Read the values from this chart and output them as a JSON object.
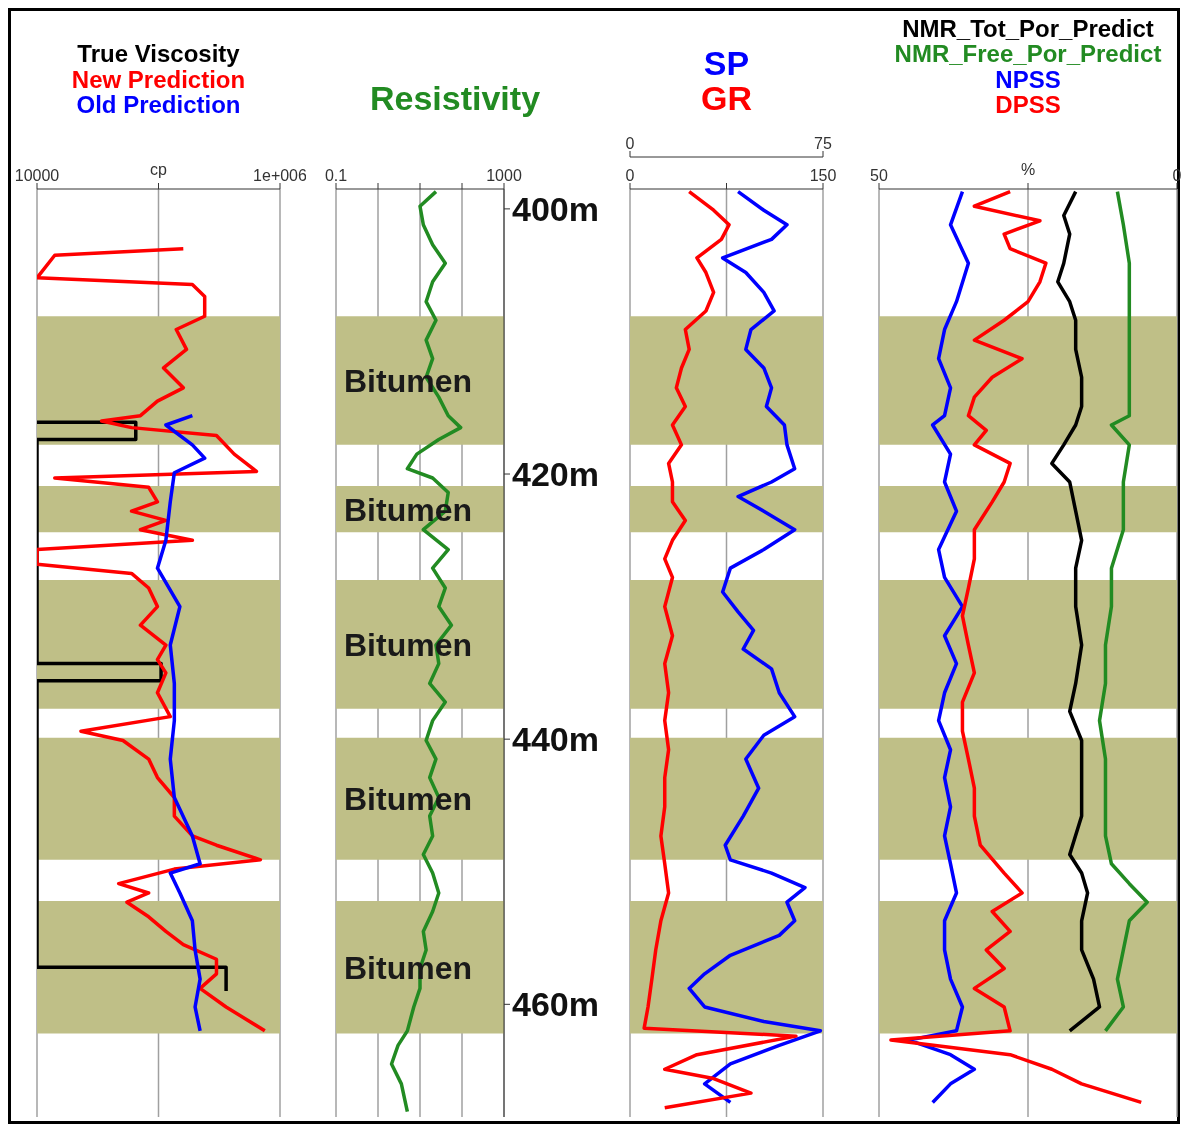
{
  "chart_data": [
    {
      "type": "line",
      "log": "x",
      "grid": "x",
      "tick_labels": "x",
      "xlabel": "cp",
      "xlim": [
        10000,
        1000000
      ],
      "xticks": [
        10000,
        {
          "value": 100000,
          "label": null
        },
        {
          "value": 1000000,
          "label": "1e+006"
        }
      ],
      "ylim": [
        468.5,
        398.5
      ],
      "bands": [
        {
          "axis": "y",
          "from": 408.1,
          "to": 417.8,
          "color": "#bfbf87"
        },
        {
          "axis": "y",
          "from": 420.9,
          "to": 424.4,
          "color": "#bfbf87"
        },
        {
          "axis": "y",
          "from": 428.0,
          "to": 437.7,
          "color": "#bfbf87"
        },
        {
          "axis": "y",
          "from": 439.9,
          "to": 449.1,
          "color": "#bfbf87"
        },
        {
          "axis": "y",
          "from": 452.2,
          "to": 462.2,
          "color": "#bfbf87"
        }
      ],
      "series": [
        {
          "name": "True Viscosity",
          "color": "#000000",
          "x": [
            10000,
            65000,
            65000,
            10000,
            10000,
            105000,
            105000,
            10000,
            10000,
            360000,
            360000
          ],
          "values": [
            416.1,
            416.1,
            417.4,
            417.4,
            434.3,
            434.3,
            435.6,
            435.6,
            457.2,
            457.2,
            459.0
          ]
        },
        {
          "name": "New Prediction",
          "color": "#ff0000",
          "x": [
            160000,
            14000,
            10000,
            190000,
            240000,
            240000,
            140000,
            170000,
            110000,
            160000,
            98000,
            71000,
            34000,
            60000,
            300000,
            420000,
            640000,
            14000,
            83000,
            98000,
            60000,
            115000,
            71000,
            190000,
            10000,
            10000,
            60000,
            83000,
            98000,
            71000,
            115000,
            98000,
            115000,
            98000,
            125000,
            23000,
            51000,
            83000,
            98000,
            135000,
            135000,
            190000,
            300000,
            690000,
            135000,
            47000,
            83000,
            55000,
            83000,
            115000,
            160000,
            300000,
            300000,
            220000,
            360000,
            750000
          ],
          "values": [
            403.0,
            403.5,
            405.2,
            405.7,
            406.6,
            408.1,
            409.1,
            410.6,
            412.0,
            413.5,
            414.5,
            415.6,
            416.0,
            416.5,
            417.1,
            418.5,
            419.8,
            420.3,
            421.0,
            422.1,
            422.8,
            423.5,
            424.2,
            425.0,
            425.7,
            426.8,
            427.5,
            428.6,
            430.0,
            431.4,
            432.9,
            434.0,
            435.0,
            436.5,
            438.3,
            439.4,
            440.1,
            441.5,
            442.9,
            444.4,
            445.8,
            447.3,
            448.0,
            449.1,
            449.8,
            450.9,
            451.6,
            452.3,
            453.4,
            454.5,
            455.5,
            456.6,
            457.7,
            458.8,
            460.2,
            462.0
          ]
        },
        {
          "name": "Old Prediction",
          "color": "#0000ff",
          "x": [
            190000,
            115000,
            190000,
            240000,
            135000,
            125000,
            115000,
            98000,
            150000,
            125000,
            135000,
            135000,
            125000,
            135000,
            190000,
            220000,
            125000,
            150000,
            190000,
            200000,
            220000,
            200000,
            220000
          ],
          "values": [
            415.6,
            416.3,
            417.8,
            418.8,
            419.9,
            422.1,
            425.0,
            427.1,
            430.0,
            432.9,
            435.8,
            438.6,
            441.5,
            444.4,
            447.3,
            449.4,
            450.1,
            451.6,
            453.7,
            455.9,
            458.1,
            460.2,
            462.0
          ]
        }
      ]
    },
    {
      "type": "line",
      "log": "x",
      "grid": "x",
      "xlim": [
        0.1,
        1000
      ],
      "xticks": [
        0.1,
        {
          "value": 1,
          "label": null
        },
        {
          "value": 10,
          "label": null
        },
        {
          "value": 100,
          "label": null
        },
        1000
      ],
      "ylim": [
        468.5,
        398.5
      ],
      "yticks": [
        {
          "value": 400,
          "label": "400m"
        },
        {
          "value": 420,
          "label": "420m"
        },
        {
          "value": 440,
          "label": "440m"
        },
        {
          "value": 460,
          "label": "460m"
        }
      ],
      "bands": [
        {
          "axis": "y",
          "from": 408.1,
          "to": 417.8,
          "color": "#bfbf87",
          "label": "Bitumen"
        },
        {
          "axis": "y",
          "from": 420.9,
          "to": 424.4,
          "color": "#bfbf87",
          "label": "Bitumen"
        },
        {
          "axis": "y",
          "from": 428.0,
          "to": 437.7,
          "color": "#bfbf87",
          "label": "Bitumen"
        },
        {
          "axis": "y",
          "from": 439.9,
          "to": 449.1,
          "color": "#bfbf87",
          "label": "Bitumen"
        },
        {
          "axis": "y",
          "from": 452.2,
          "to": 462.2,
          "color": "#bfbf87",
          "label": "Bitumen"
        }
      ],
      "series": [
        {
          "name": "Resistivity",
          "color": "#228b22",
          "x": [
            24,
            10,
            12,
            20,
            40,
            20,
            14,
            24,
            14,
            20,
            14,
            28,
            47,
            93,
            28,
            8.4,
            5,
            20,
            47,
            40,
            12,
            47,
            20,
            40,
            28,
            56,
            24,
            28,
            17,
            40,
            20,
            14,
            24,
            17,
            28,
            17,
            20,
            12,
            20,
            28,
            20,
            12,
            14,
            10,
            10,
            7.1,
            5,
            3,
            2.1,
            3.6,
            5
          ],
          "values": [
            398.7,
            399.8,
            401.2,
            402.7,
            404.1,
            405.5,
            407.0,
            408.4,
            409.9,
            411.3,
            412.7,
            414.2,
            415.6,
            416.5,
            417.4,
            418.5,
            419.6,
            420.3,
            421.4,
            422.8,
            424.2,
            425.7,
            427.1,
            428.6,
            430.0,
            431.4,
            432.9,
            434.3,
            435.8,
            437.2,
            438.6,
            440.1,
            441.5,
            442.9,
            444.4,
            445.8,
            447.3,
            448.7,
            450.1,
            451.6,
            453.0,
            454.5,
            455.9,
            457.3,
            458.8,
            460.2,
            462.0,
            463.1,
            464.5,
            466.0,
            468.1
          ]
        }
      ]
    },
    {
      "type": "line",
      "grid": "x",
      "tick_labels": "x",
      "xlim": [
        0,
        150
      ],
      "xticks": [
        0,
        {
          "value": 75,
          "label": null
        },
        150
      ],
      "x2lim": [
        0,
        75
      ],
      "x2ticks": [
        0,
        75
      ],
      "ylim": [
        468.5,
        398.5
      ],
      "bands": [
        {
          "axis": "y",
          "from": 408.1,
          "to": 417.8,
          "color": "#bfbf87"
        },
        {
          "axis": "y",
          "from": 420.9,
          "to": 424.4,
          "color": "#bfbf87"
        },
        {
          "axis": "y",
          "from": 428.0,
          "to": 437.7,
          "color": "#bfbf87"
        },
        {
          "axis": "y",
          "from": 439.9,
          "to": 449.1,
          "color": "#bfbf87"
        },
        {
          "axis": "y",
          "from": 452.2,
          "to": 462.2,
          "color": "#bfbf87"
        }
      ],
      "series": [
        {
          "name": "SP",
          "color": "#0000ff",
          "axis": "x2",
          "x": [
            42,
            52,
            61,
            55,
            36,
            45,
            52,
            56,
            47,
            45,
            52,
            55,
            53,
            60,
            61,
            64,
            55,
            42,
            52,
            64,
            52,
            39,
            36,
            42,
            48,
            44,
            55,
            58,
            64,
            52,
            45,
            50,
            44,
            37,
            39,
            55,
            68,
            61,
            64,
            58,
            39,
            29,
            23,
            29,
            52,
            74,
            58,
            39,
            29,
            39
          ],
          "values": [
            398.7,
            400.1,
            401.2,
            402.3,
            403.7,
            404.8,
            406.3,
            407.7,
            409.1,
            410.6,
            412.0,
            413.5,
            414.9,
            416.3,
            417.8,
            419.6,
            420.6,
            421.7,
            422.8,
            424.2,
            425.7,
            427.1,
            428.9,
            430.4,
            431.8,
            433.2,
            434.7,
            436.5,
            438.3,
            439.7,
            441.5,
            443.7,
            445.8,
            448.0,
            449.1,
            450.1,
            451.2,
            452.3,
            453.7,
            454.8,
            456.3,
            457.7,
            458.8,
            460.2,
            461.3,
            462.0,
            463.1,
            464.5,
            466.0,
            467.4
          ]
        },
        {
          "name": "GR",
          "color": "#ff0000",
          "x": [
            46,
            65,
            77,
            71,
            52,
            59,
            65,
            59,
            43,
            46,
            40,
            36,
            43,
            33,
            40,
            30,
            33,
            33,
            43,
            33,
            27,
            33,
            27,
            33,
            27,
            30,
            27,
            30,
            27,
            27,
            24,
            27,
            30,
            24,
            20,
            17,
            14,
            11,
            129,
            52,
            27,
            65,
            94,
            27
          ],
          "values": [
            398.7,
            400.1,
            401.2,
            402.3,
            403.7,
            404.8,
            406.3,
            407.7,
            409.1,
            410.6,
            412.0,
            413.5,
            414.9,
            416.3,
            417.8,
            419.2,
            420.6,
            422.1,
            423.5,
            425.0,
            426.4,
            427.8,
            430.0,
            432.2,
            434.3,
            436.5,
            438.6,
            440.8,
            442.9,
            445.1,
            447.3,
            449.4,
            451.6,
            453.7,
            455.9,
            458.1,
            460.2,
            461.8,
            462.4,
            463.8,
            464.9,
            465.6,
            466.7,
            467.8
          ]
        }
      ]
    },
    {
      "type": "line",
      "grid": "x",
      "tick_labels": "x",
      "xlabel": "%",
      "xlim": [
        50,
        0
      ],
      "xticks": [
        50,
        {
          "value": 25,
          "label": null
        },
        0
      ],
      "ylim": [
        468.5,
        398.5
      ],
      "bands": [
        {
          "axis": "y",
          "from": 408.1,
          "to": 417.8,
          "color": "#bfbf87"
        },
        {
          "axis": "y",
          "from": 420.9,
          "to": 424.4,
          "color": "#bfbf87"
        },
        {
          "axis": "y",
          "from": 428.0,
          "to": 437.7,
          "color": "#bfbf87"
        },
        {
          "axis": "y",
          "from": 439.9,
          "to": 449.1,
          "color": "#bfbf87"
        },
        {
          "axis": "y",
          "from": 452.2,
          "to": 462.2,
          "color": "#bfbf87"
        }
      ],
      "series": [
        {
          "name": "NMR_Tot_Por_Predict",
          "color": "#000000",
          "x": [
            17,
            19,
            18,
            19,
            20,
            18,
            17,
            17,
            16,
            16,
            17,
            19,
            21,
            18,
            17,
            16,
            17,
            17,
            16,
            17,
            18,
            16,
            16,
            16,
            18,
            16,
            15,
            16,
            16,
            14,
            13,
            18
          ],
          "values": [
            398.7,
            400.5,
            401.9,
            404.1,
            405.5,
            407.0,
            408.4,
            410.6,
            412.7,
            414.9,
            416.3,
            417.8,
            419.2,
            420.6,
            422.8,
            425.0,
            427.1,
            430.0,
            432.9,
            435.8,
            437.9,
            440.1,
            442.9,
            445.8,
            448.7,
            450.1,
            451.6,
            453.7,
            455.9,
            458.1,
            460.2,
            462.0
          ]
        },
        {
          "name": "NMR_Free_Por_Predict",
          "color": "#228b22",
          "x": [
            10,
            9,
            8,
            8,
            8,
            8,
            8,
            11,
            8,
            9,
            9,
            11,
            11,
            12,
            12,
            13,
            12,
            12,
            12,
            11,
            8,
            5,
            8,
            9,
            10,
            9,
            12
          ],
          "values": [
            398.7,
            401.2,
            404.1,
            407.0,
            409.9,
            412.7,
            415.6,
            416.3,
            417.8,
            420.6,
            424.2,
            427.1,
            430.0,
            432.9,
            435.8,
            438.6,
            441.5,
            444.4,
            447.3,
            449.4,
            450.9,
            452.3,
            453.7,
            455.9,
            458.1,
            460.2,
            462.0
          ]
        },
        {
          "name": "NPSS",
          "color": "#0000ff",
          "x": [
            36,
            38,
            35,
            37,
            39,
            40,
            38,
            39,
            41,
            38,
            39,
            37,
            40,
            39,
            36,
            39,
            37,
            39,
            40,
            38,
            39,
            38,
            39,
            38,
            37,
            39,
            39,
            38,
            36,
            37,
            45,
            38,
            34,
            38,
            41
          ],
          "values": [
            398.7,
            401.2,
            404.1,
            407.0,
            409.1,
            411.3,
            413.5,
            415.6,
            416.3,
            418.5,
            420.6,
            422.8,
            425.7,
            427.8,
            430.0,
            432.2,
            434.3,
            436.5,
            438.6,
            440.8,
            442.9,
            445.1,
            447.3,
            449.4,
            451.6,
            453.7,
            455.9,
            458.1,
            460.2,
            462.0,
            462.7,
            463.8,
            464.9,
            466.0,
            467.4
          ]
        },
        {
          "name": "DPSS",
          "color": "#ff0000",
          "x": [
            28,
            34,
            23,
            29,
            28,
            22,
            23,
            25,
            29,
            34,
            26,
            31,
            34,
            35,
            32,
            34,
            28,
            29,
            31,
            34,
            34,
            35,
            36,
            35,
            34,
            36,
            36,
            35,
            34,
            34,
            33,
            29,
            26,
            31,
            28,
            32,
            29,
            34,
            29,
            28,
            48,
            28,
            21,
            16,
            6
          ],
          "values": [
            398.7,
            399.8,
            400.9,
            401.9,
            403.0,
            404.1,
            405.5,
            407.0,
            408.4,
            409.9,
            411.3,
            412.7,
            414.2,
            415.6,
            416.7,
            417.8,
            419.2,
            420.6,
            422.1,
            424.2,
            426.4,
            428.6,
            430.7,
            432.9,
            435.0,
            437.2,
            439.4,
            441.5,
            443.7,
            445.8,
            448.0,
            450.1,
            451.6,
            453.0,
            454.5,
            455.9,
            457.3,
            458.8,
            460.2,
            462.0,
            462.7,
            463.8,
            464.9,
            466.0,
            467.4
          ]
        }
      ]
    }
  ]
}
